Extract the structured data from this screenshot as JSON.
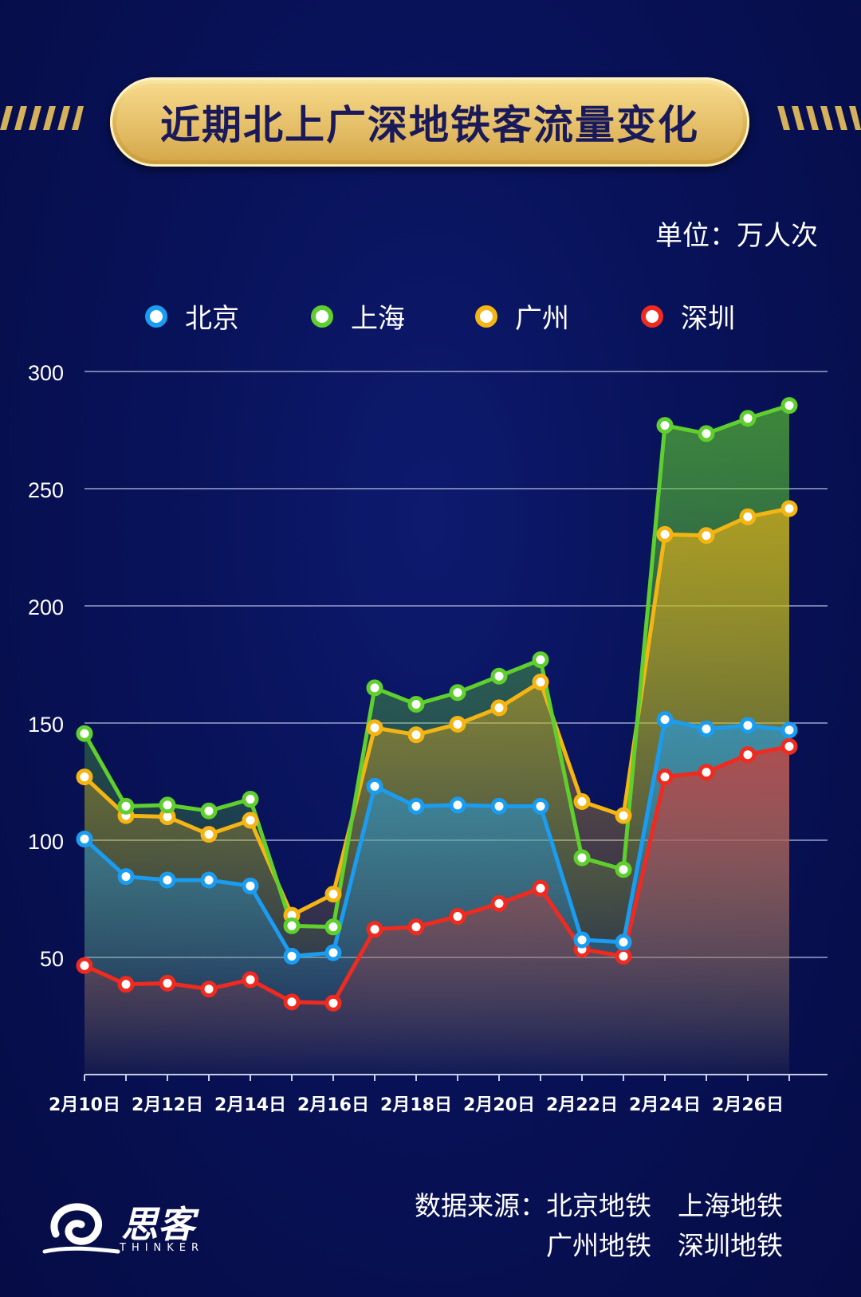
{
  "title": "近期北上广深地铁客流量变化",
  "unit": "单位：万人次",
  "source": {
    "line1": "数据来源：北京地铁　上海地铁",
    "line2": "广州地铁　深圳地铁"
  },
  "logo": {
    "name": "思客",
    "sub": "THINKER"
  },
  "colors": {
    "background": "#081259",
    "grid": "#9aa3c9",
    "beijing": "#1a9cf0",
    "shanghai": "#5fcf2d",
    "guangzhou": "#f4b512",
    "shenzhen": "#f02a1f",
    "title_gold": "#e7c26c"
  },
  "chart_data": {
    "type": "area",
    "ylim": [
      0,
      300
    ],
    "yticks": [
      "50",
      "100",
      "150",
      "200",
      "250",
      "300"
    ],
    "x": [
      "2月10日",
      "2月11日",
      "2月12日",
      "2月13日",
      "2月14日",
      "2月15日",
      "2月16日",
      "2月17日",
      "2月18日",
      "2月19日",
      "2月20日",
      "2月21日",
      "2月22日",
      "2月23日",
      "2月24日",
      "2月25日",
      "2月26日",
      "2月27日"
    ],
    "xtick_labels": [
      "2月10日",
      "2月12日",
      "2月14日",
      "2月16日",
      "2月18日",
      "2月20日",
      "2月22日",
      "2月24日",
      "2月26日"
    ],
    "legend_placement": "top",
    "series": [
      {
        "name": "北京",
        "key": "beijing",
        "values": [
          100.5,
          84.5,
          83,
          83,
          80.5,
          50.5,
          52,
          123,
          114.5,
          115,
          114.5,
          114.5,
          57.5,
          56.5,
          151.5,
          147.5,
          149,
          147
        ]
      },
      {
        "name": "上海",
        "key": "shanghai",
        "values": [
          145.5,
          114.5,
          115,
          112.5,
          117.5,
          63.5,
          63,
          165,
          158,
          163,
          170,
          177,
          92.5,
          87.5,
          277,
          273.5,
          280,
          285.5
        ]
      },
      {
        "name": "广州",
        "key": "guangzhou",
        "values": [
          127,
          110.5,
          110,
          102.5,
          108.5,
          68,
          77,
          148,
          145,
          149.5,
          156.5,
          167.5,
          116.5,
          110.5,
          230.5,
          230,
          238,
          241.5
        ]
      },
      {
        "name": "深圳",
        "key": "shenzhen",
        "values": [
          46.5,
          38.5,
          39,
          36.5,
          40.5,
          31,
          30.5,
          62,
          63,
          67.5,
          73,
          79.5,
          53.5,
          50.5,
          127,
          129,
          136.5,
          140
        ]
      }
    ]
  }
}
